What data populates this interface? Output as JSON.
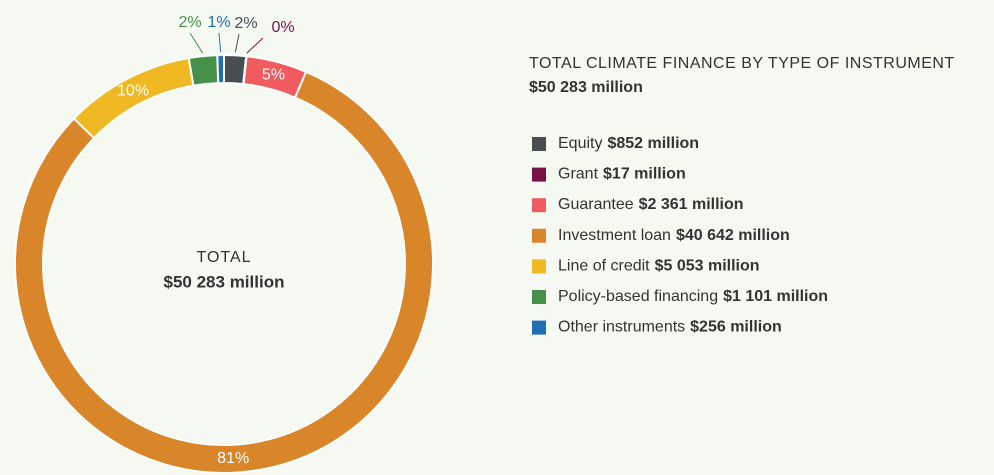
{
  "chart_data": {
    "type": "donut",
    "title": "TOTAL CLIMATE FINANCE BY TYPE OF INSTRUMENT",
    "total_label": "$50 283 million",
    "center_label": "TOTAL",
    "categories": [
      "Equity",
      "Grant",
      "Guarantee",
      "Investment loan",
      "Line of credit",
      "Policy-based financing",
      "Other instruments"
    ],
    "values": [
      852,
      17,
      2361,
      40642,
      5053,
      1101,
      256
    ],
    "value_labels": [
      "$852 million",
      "$17 million",
      "$2 361 million",
      "$40 642 million",
      "$5 053 million",
      "$1 101 million",
      "$256 million"
    ],
    "percent_labels": [
      "2%",
      "0%",
      "5%",
      "81%",
      "10%",
      "2%",
      "1%"
    ],
    "colors": [
      "#4a4d52",
      "#7a1446",
      "#ef5b5f",
      "#d9862b",
      "#f0b823",
      "#46914a",
      "#1f6eb4"
    ]
  }
}
